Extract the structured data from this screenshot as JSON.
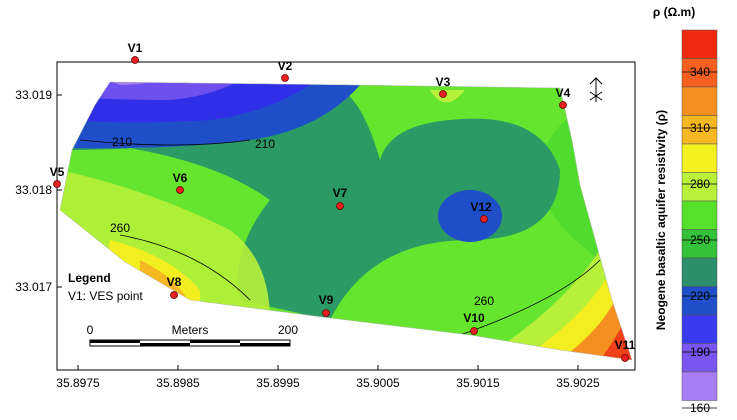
{
  "map": {
    "y_ticks": [
      "33.019",
      "33.018",
      "33.017"
    ],
    "x_ticks": [
      "35.8975",
      "35.8985",
      "35.8995",
      "35.9005",
      "35.9015",
      "35.9025"
    ],
    "points": [
      "V1",
      "V2",
      "V3",
      "V4",
      "V5",
      "V6",
      "V7",
      "V12",
      "V8",
      "V9",
      "V10",
      "V11"
    ],
    "contour_labels": [
      "210",
      "210",
      "260",
      "260"
    ],
    "legend": {
      "title": "Legend",
      "text": "V1: VES point"
    },
    "scale_bar": {
      "start": "0",
      "unit": "Meters",
      "end": "200"
    },
    "colorbar": {
      "title": "ρ (Ω.m)",
      "axis_label": "Neogene basaltic aquifer resistivity (ρ)",
      "ticks": [
        "340",
        "310",
        "280",
        "250",
        "220",
        "190",
        "160"
      ]
    }
  }
}
